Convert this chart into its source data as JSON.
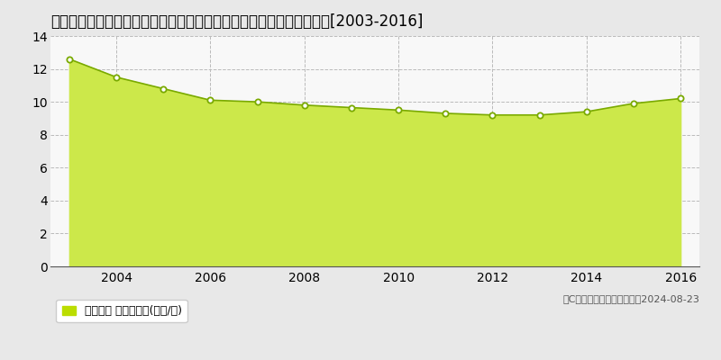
{
  "title": "宮城県黒川郡富谷町とちの木２丁目９番３２４　地価公示　地価推移[2003-2016]",
  "years": [
    2003,
    2004,
    2005,
    2006,
    2007,
    2008,
    2009,
    2010,
    2011,
    2012,
    2013,
    2014,
    2015,
    2016
  ],
  "values": [
    12.6,
    11.5,
    10.8,
    10.1,
    10.0,
    9.8,
    9.65,
    9.5,
    9.3,
    9.2,
    9.2,
    9.4,
    9.9,
    10.2
  ],
  "fill_color": "#cce84a",
  "line_color": "#7aaa00",
  "marker_facecolor": "#ffffff",
  "marker_edgecolor": "#7aaa00",
  "grid_color": "#bbbbbb",
  "fig_background": "#e8e8e8",
  "plot_background": "#f8f8f8",
  "ylim": [
    0,
    14
  ],
  "yticks": [
    0,
    2,
    4,
    6,
    8,
    10,
    12,
    14
  ],
  "xtick_years": [
    2004,
    2006,
    2008,
    2010,
    2012,
    2014,
    2016
  ],
  "legend_label": "地価公示 平均坪単価(万円/坪)",
  "legend_square_color": "#bbdd00",
  "copyright_text": "（C）土地価格ドットコム　2024-08-23",
  "title_fontsize": 12,
  "axis_fontsize": 10,
  "legend_fontsize": 9,
  "copyright_fontsize": 8
}
